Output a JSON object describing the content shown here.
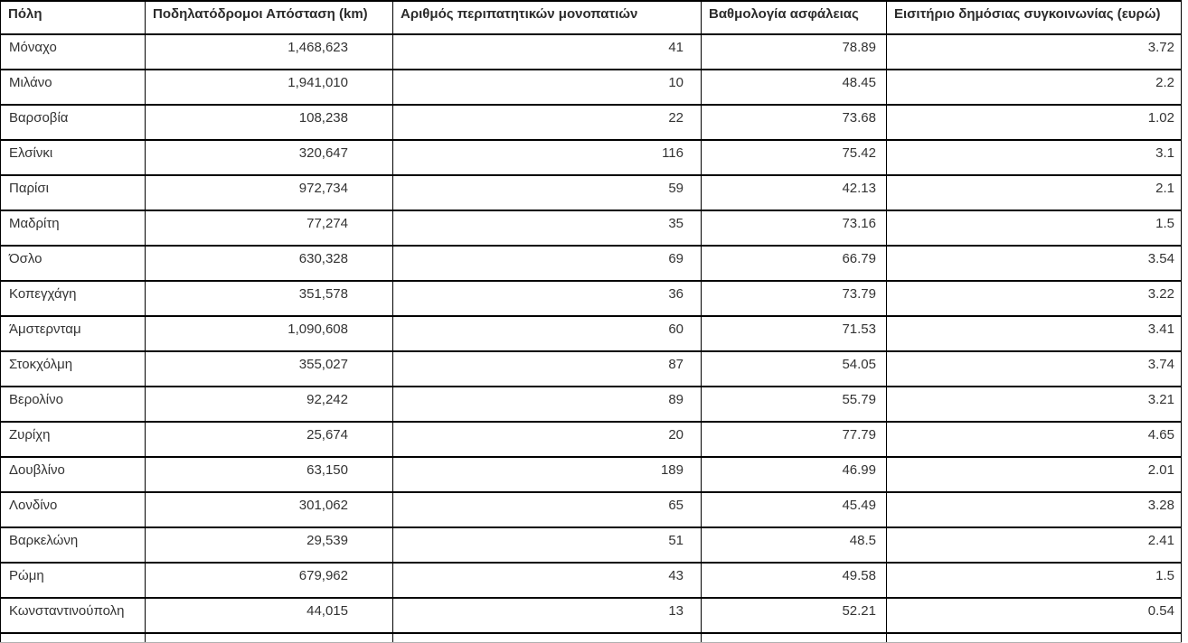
{
  "table": {
    "columns": [
      {
        "label": "Πόλη"
      },
      {
        "label": "Ποδηλατόδρομοι Απόσταση (km)"
      },
      {
        "label": "Αριθμός περιπατητικών μονοπατιών"
      },
      {
        "label": "Βαθμολογία ασφάλειας"
      },
      {
        "label": "Εισιτήριο δημόσιας συγκοινωνίας (ευρώ)"
      }
    ],
    "rows": [
      [
        "Μόναχο",
        "1,468,623",
        "41",
        "78.89",
        "3.72"
      ],
      [
        "Μιλάνο",
        "1,941,010",
        "10",
        "48.45",
        "2.2"
      ],
      [
        "Βαρσοβία",
        "108,238",
        "22",
        "73.68",
        "1.02"
      ],
      [
        "Ελσίνκι",
        "320,647",
        "116",
        "75.42",
        "3.1"
      ],
      [
        "Παρίσι",
        "972,734",
        "59",
        "42.13",
        "2.1"
      ],
      [
        "Μαδρίτη",
        "77,274",
        "35",
        "73.16",
        "1.5"
      ],
      [
        "Όσλο",
        "630,328",
        "69",
        "66.79",
        "3.54"
      ],
      [
        "Κοπεγχάγη",
        "351,578",
        "36",
        "73.79",
        "3.22"
      ],
      [
        "Άμστερνταμ",
        "1,090,608",
        "60",
        "71.53",
        "3.41"
      ],
      [
        "Στοκχόλμη",
        "355,027",
        "87",
        "54.05",
        "3.74"
      ],
      [
        "Βερολίνο",
        "92,242",
        "89",
        "55.79",
        "3.21"
      ],
      [
        "Ζυρίχη",
        "25,674",
        "20",
        "77.79",
        "4.65"
      ],
      [
        "Δουβλίνο",
        "63,150",
        "189",
        "46.99",
        "2.01"
      ],
      [
        "Λονδίνο",
        "301,062",
        "65",
        "45.49",
        "3.28"
      ],
      [
        "Βαρκελώνη",
        "29,539",
        "51",
        "48.5",
        "2.41"
      ],
      [
        "Ρώμη",
        "679,962",
        "43",
        "49.58",
        "1.5"
      ],
      [
        "Κωνσταντινούπολη",
        "44,015",
        "13",
        "52.21",
        "0.54"
      ]
    ]
  },
  "colors": {
    "border": "#000000",
    "text": "#333333",
    "background": "#ffffff"
  }
}
